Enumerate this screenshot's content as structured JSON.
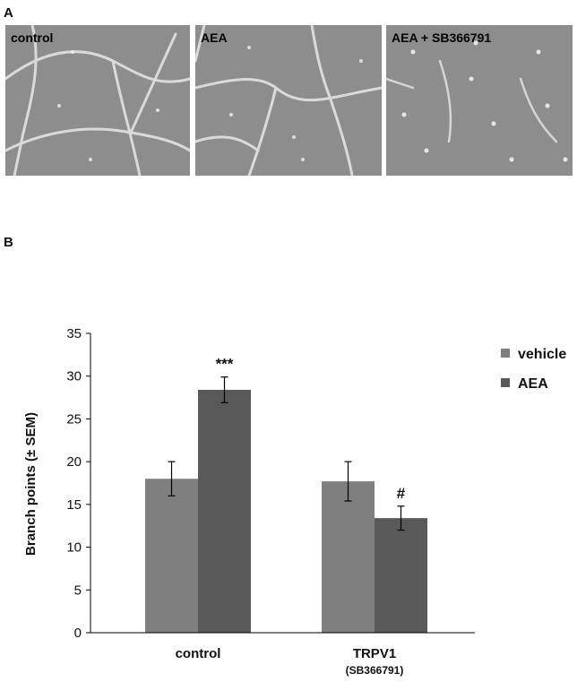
{
  "panel_a": {
    "letter": "A",
    "images": [
      {
        "label": "control"
      },
      {
        "label": "AEA"
      },
      {
        "label": "AEA + SB366791"
      }
    ]
  },
  "panel_b": {
    "letter": "B"
  },
  "colors": {
    "vehicle": "#7f7f7f",
    "AEA": "#595959",
    "micro_bg": "#8d8d8d"
  },
  "chart_data": {
    "type": "bar",
    "categories": [
      "control",
      "TRPV1"
    ],
    "category_sublabels": [
      "",
      "(SB366791)"
    ],
    "series": [
      {
        "name": "vehicle",
        "values": [
          18,
          17.7
        ],
        "errors": [
          2.0,
          2.3
        ],
        "annotations": [
          "",
          ""
        ]
      },
      {
        "name": "AEA",
        "values": [
          28.4,
          13.4
        ],
        "errors": [
          1.5,
          1.4
        ],
        "annotations": [
          "***",
          "#"
        ]
      }
    ],
    "ylabel": "Branch points (± SEM)",
    "xlabel": "",
    "ylim": [
      0,
      35
    ],
    "yticks": [
      0,
      5,
      10,
      15,
      20,
      25,
      30,
      35
    ],
    "grid": false,
    "legend_position": "top-right"
  }
}
